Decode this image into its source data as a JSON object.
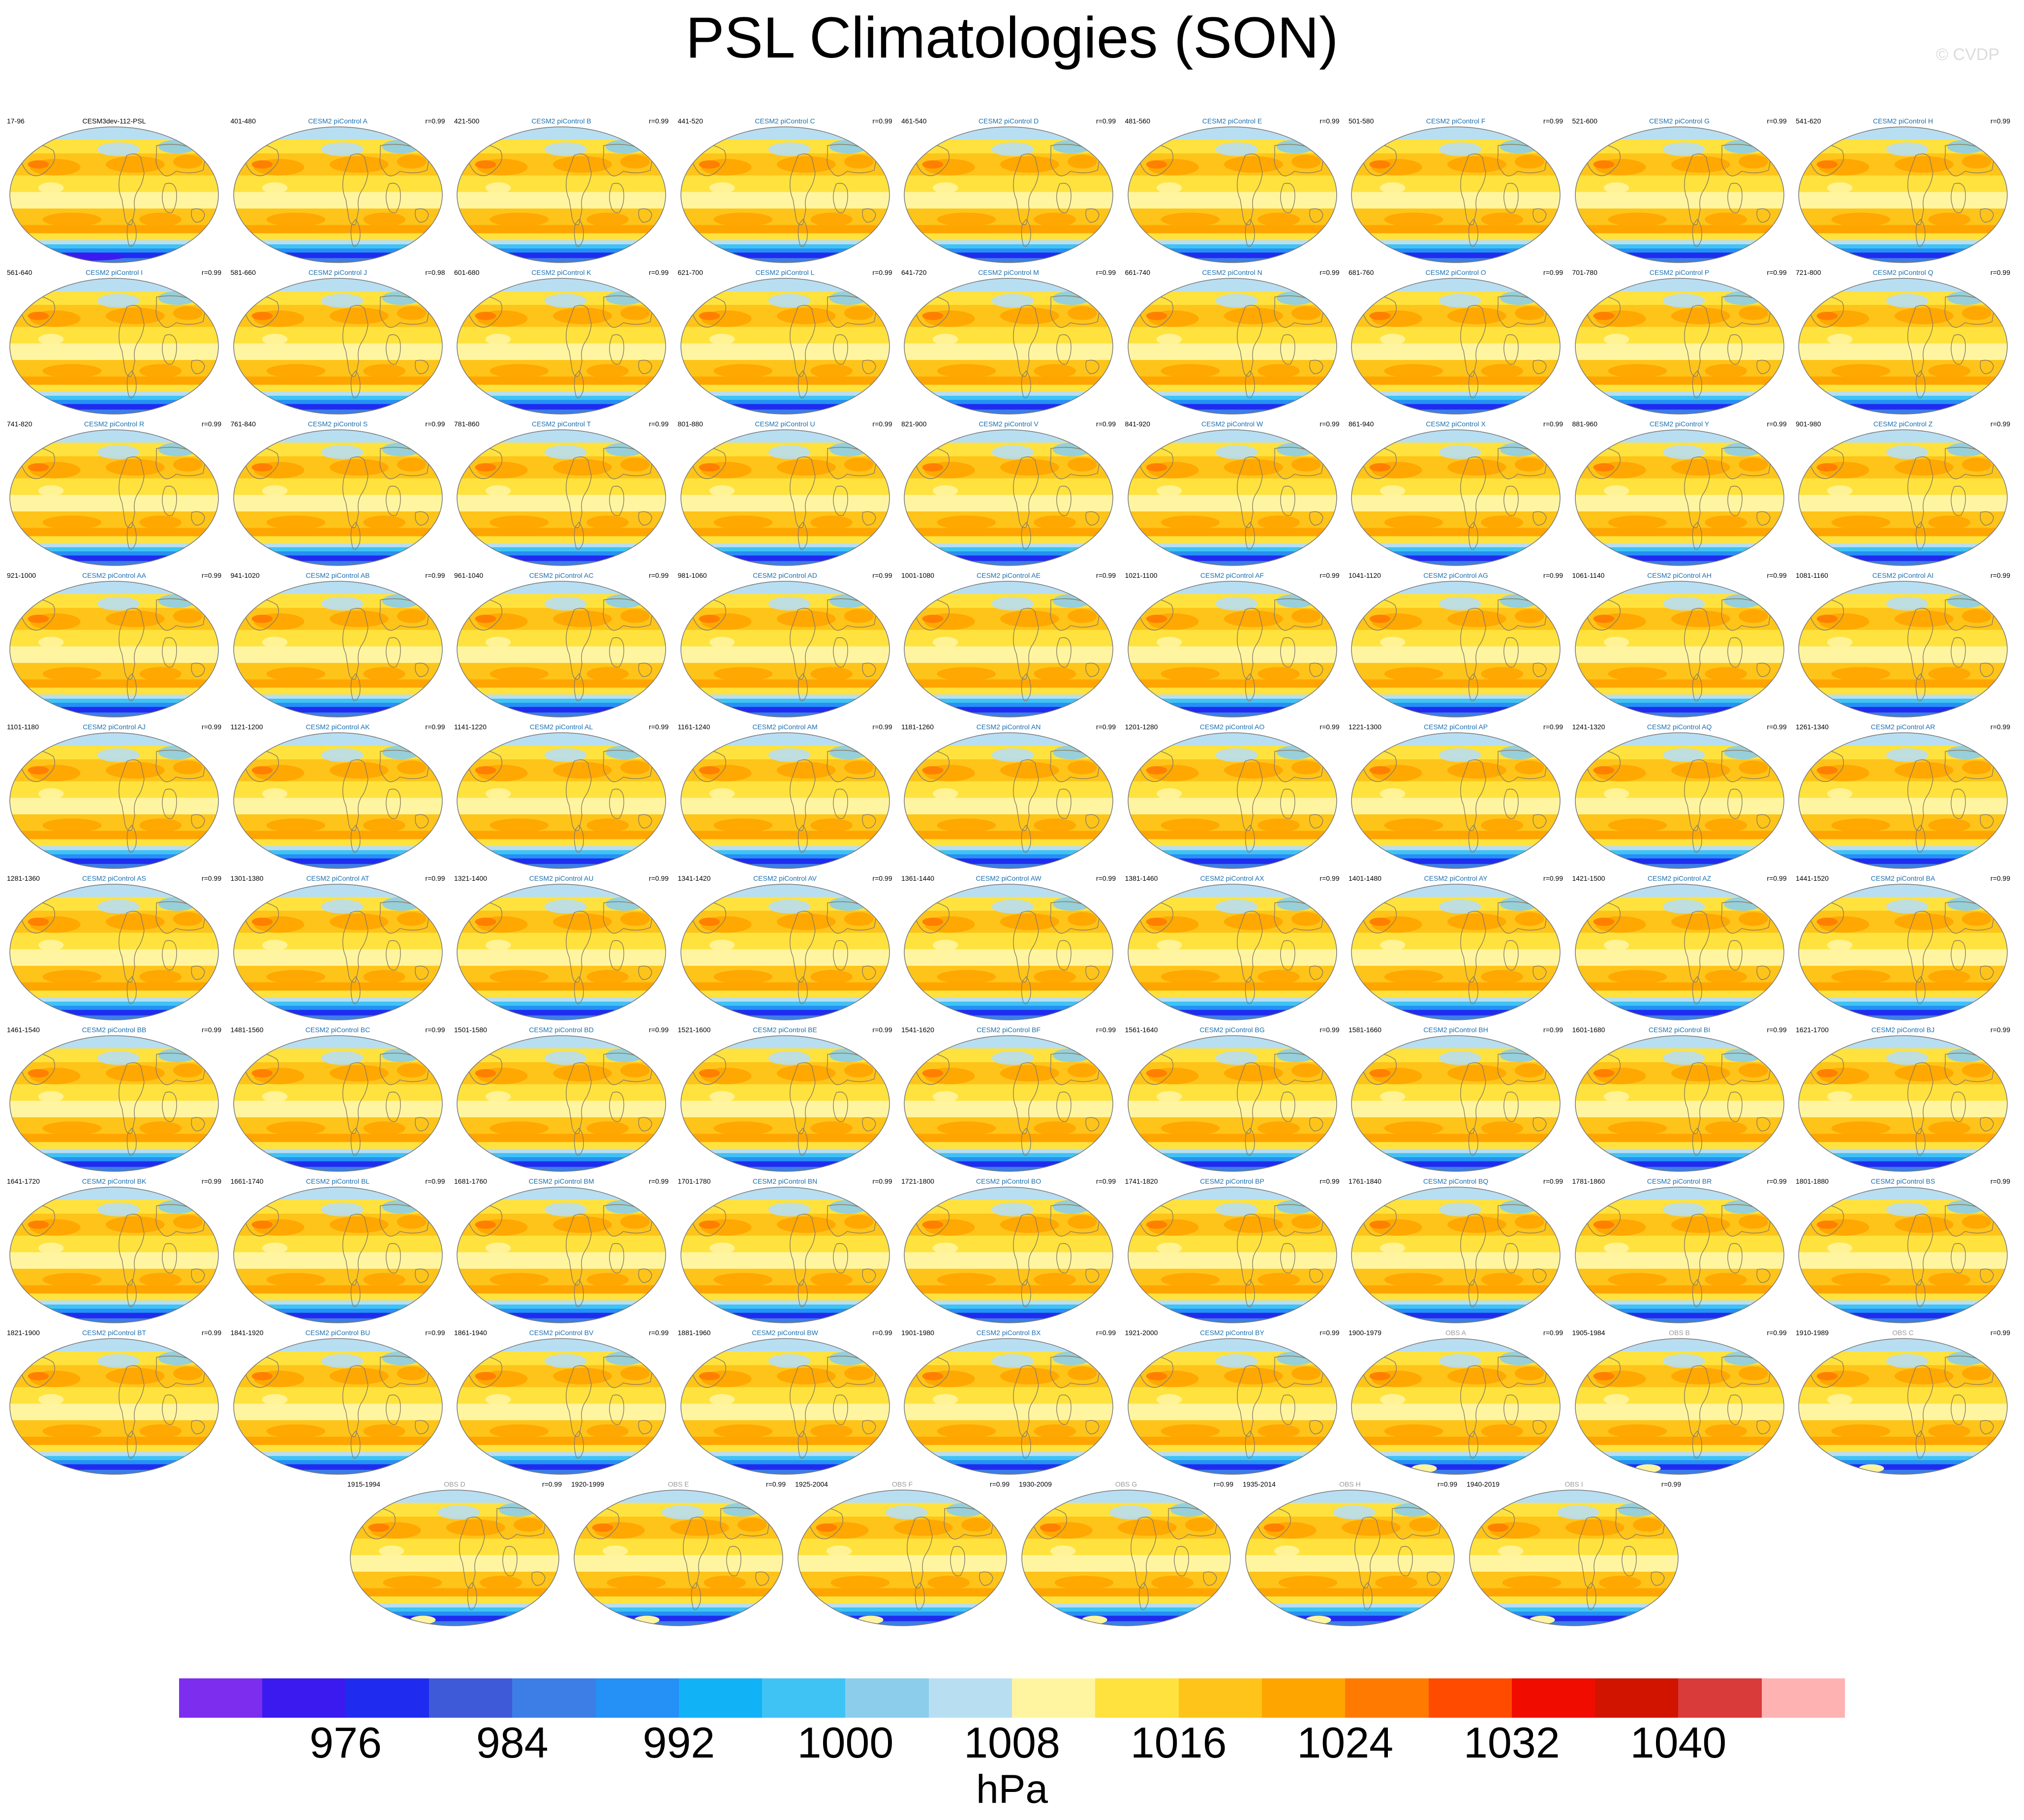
{
  "title": "PSL Climatologies (SON)",
  "copyright": "© CVDP",
  "units": "hPa",
  "colorbar": {
    "colors": [
      "#7d2ded",
      "#3b1af0",
      "#1f2cf0",
      "#3f5ad8",
      "#3d7ee6",
      "#2590f5",
      "#12b2f7",
      "#3fc3f5",
      "#8ccdeb",
      "#b8def2",
      "#fff5a0",
      "#ffe23d",
      "#ffc419",
      "#ffa500",
      "#ff7a00",
      "#ff4b00",
      "#f10c00",
      "#d11400",
      "#d93a3a",
      "#ffb2b2"
    ],
    "labels": [
      "976",
      "984",
      "992",
      "1000",
      "1008",
      "1016",
      "1024",
      "1032",
      "1040"
    ]
  },
  "panels": [
    {
      "title": "CESM3dev-112-PSL",
      "years": "17-96",
      "r": "",
      "kind": "ref"
    },
    {
      "title": "CESM2 piControl A",
      "years": "401-480",
      "r": "r=0.99",
      "kind": "model"
    },
    {
      "title": "CESM2 piControl B",
      "years": "421-500",
      "r": "r=0.99",
      "kind": "model"
    },
    {
      "title": "CESM2 piControl C",
      "years": "441-520",
      "r": "r=0.99",
      "kind": "model"
    },
    {
      "title": "CESM2 piControl D",
      "years": "461-540",
      "r": "r=0.99",
      "kind": "model"
    },
    {
      "title": "CESM2 piControl E",
      "years": "481-560",
      "r": "r=0.99",
      "kind": "model"
    },
    {
      "title": "CESM2 piControl F",
      "years": "501-580",
      "r": "r=0.99",
      "kind": "model"
    },
    {
      "title": "CESM2 piControl G",
      "years": "521-600",
      "r": "r=0.99",
      "kind": "model"
    },
    {
      "title": "CESM2 piControl H",
      "years": "541-620",
      "r": "r=0.99",
      "kind": "model"
    },
    {
      "title": "CESM2 piControl I",
      "years": "561-640",
      "r": "r=0.99",
      "kind": "model"
    },
    {
      "title": "CESM2 piControl J",
      "years": "581-660",
      "r": "r=0.98",
      "kind": "model"
    },
    {
      "title": "CESM2 piControl K",
      "years": "601-680",
      "r": "r=0.99",
      "kind": "model"
    },
    {
      "title": "CESM2 piControl L",
      "years": "621-700",
      "r": "r=0.99",
      "kind": "model"
    },
    {
      "title": "CESM2 piControl M",
      "years": "641-720",
      "r": "r=0.99",
      "kind": "model"
    },
    {
      "title": "CESM2 piControl N",
      "years": "661-740",
      "r": "r=0.99",
      "kind": "model"
    },
    {
      "title": "CESM2 piControl O",
      "years": "681-760",
      "r": "r=0.99",
      "kind": "model"
    },
    {
      "title": "CESM2 piControl P",
      "years": "701-780",
      "r": "r=0.99",
      "kind": "model"
    },
    {
      "title": "CESM2 piControl Q",
      "years": "721-800",
      "r": "r=0.99",
      "kind": "model"
    },
    {
      "title": "CESM2 piControl R",
      "years": "741-820",
      "r": "r=0.99",
      "kind": "model"
    },
    {
      "title": "CESM2 piControl S",
      "years": "761-840",
      "r": "r=0.99",
      "kind": "model"
    },
    {
      "title": "CESM2 piControl T",
      "years": "781-860",
      "r": "r=0.99",
      "kind": "model"
    },
    {
      "title": "CESM2 piControl U",
      "years": "801-880",
      "r": "r=0.99",
      "kind": "model"
    },
    {
      "title": "CESM2 piControl V",
      "years": "821-900",
      "r": "r=0.99",
      "kind": "model"
    },
    {
      "title": "CESM2 piControl W",
      "years": "841-920",
      "r": "r=0.99",
      "kind": "model"
    },
    {
      "title": "CESM2 piControl X",
      "years": "861-940",
      "r": "r=0.99",
      "kind": "model"
    },
    {
      "title": "CESM2 piControl Y",
      "years": "881-960",
      "r": "r=0.99",
      "kind": "model"
    },
    {
      "title": "CESM2 piControl Z",
      "years": "901-980",
      "r": "r=0.99",
      "kind": "model"
    },
    {
      "title": "CESM2 piControl AA",
      "years": "921-1000",
      "r": "r=0.99",
      "kind": "model"
    },
    {
      "title": "CESM2 piControl AB",
      "years": "941-1020",
      "r": "r=0.99",
      "kind": "model"
    },
    {
      "title": "CESM2 piControl AC",
      "years": "961-1040",
      "r": "r=0.99",
      "kind": "model"
    },
    {
      "title": "CESM2 piControl AD",
      "years": "981-1060",
      "r": "r=0.99",
      "kind": "model"
    },
    {
      "title": "CESM2 piControl AE",
      "years": "1001-1080",
      "r": "r=0.99",
      "kind": "model"
    },
    {
      "title": "CESM2 piControl AF",
      "years": "1021-1100",
      "r": "r=0.99",
      "kind": "model"
    },
    {
      "title": "CESM2 piControl AG",
      "years": "1041-1120",
      "r": "r=0.99",
      "kind": "model"
    },
    {
      "title": "CESM2 piControl AH",
      "years": "1061-1140",
      "r": "r=0.99",
      "kind": "model"
    },
    {
      "title": "CESM2 piControl AI",
      "years": "1081-1160",
      "r": "r=0.99",
      "kind": "model"
    },
    {
      "title": "CESM2 piControl AJ",
      "years": "1101-1180",
      "r": "r=0.99",
      "kind": "model"
    },
    {
      "title": "CESM2 piControl AK",
      "years": "1121-1200",
      "r": "r=0.99",
      "kind": "model"
    },
    {
      "title": "CESM2 piControl AL",
      "years": "1141-1220",
      "r": "r=0.99",
      "kind": "model"
    },
    {
      "title": "CESM2 piControl AM",
      "years": "1161-1240",
      "r": "r=0.99",
      "kind": "model"
    },
    {
      "title": "CESM2 piControl AN",
      "years": "1181-1260",
      "r": "r=0.99",
      "kind": "model"
    },
    {
      "title": "CESM2 piControl AO",
      "years": "1201-1280",
      "r": "r=0.99",
      "kind": "model"
    },
    {
      "title": "CESM2 piControl AP",
      "years": "1221-1300",
      "r": "r=0.99",
      "kind": "model"
    },
    {
      "title": "CESM2 piControl AQ",
      "years": "1241-1320",
      "r": "r=0.99",
      "kind": "model"
    },
    {
      "title": "CESM2 piControl AR",
      "years": "1261-1340",
      "r": "r=0.99",
      "kind": "model"
    },
    {
      "title": "CESM2 piControl AS",
      "years": "1281-1360",
      "r": "r=0.99",
      "kind": "model"
    },
    {
      "title": "CESM2 piControl AT",
      "years": "1301-1380",
      "r": "r=0.99",
      "kind": "model"
    },
    {
      "title": "CESM2 piControl AU",
      "years": "1321-1400",
      "r": "r=0.99",
      "kind": "model"
    },
    {
      "title": "CESM2 piControl AV",
      "years": "1341-1420",
      "r": "r=0.99",
      "kind": "model"
    },
    {
      "title": "CESM2 piControl AW",
      "years": "1361-1440",
      "r": "r=0.99",
      "kind": "model"
    },
    {
      "title": "CESM2 piControl AX",
      "years": "1381-1460",
      "r": "r=0.99",
      "kind": "model"
    },
    {
      "title": "CESM2 piControl AY",
      "years": "1401-1480",
      "r": "r=0.99",
      "kind": "model"
    },
    {
      "title": "CESM2 piControl AZ",
      "years": "1421-1500",
      "r": "r=0.99",
      "kind": "model"
    },
    {
      "title": "CESM2 piControl BA",
      "years": "1441-1520",
      "r": "r=0.99",
      "kind": "model"
    },
    {
      "title": "CESM2 piControl BB",
      "years": "1461-1540",
      "r": "r=0.99",
      "kind": "model"
    },
    {
      "title": "CESM2 piControl BC",
      "years": "1481-1560",
      "r": "r=0.99",
      "kind": "model"
    },
    {
      "title": "CESM2 piControl BD",
      "years": "1501-1580",
      "r": "r=0.99",
      "kind": "model"
    },
    {
      "title": "CESM2 piControl BE",
      "years": "1521-1600",
      "r": "r=0.99",
      "kind": "model"
    },
    {
      "title": "CESM2 piControl BF",
      "years": "1541-1620",
      "r": "r=0.99",
      "kind": "model"
    },
    {
      "title": "CESM2 piControl BG",
      "years": "1561-1640",
      "r": "r=0.99",
      "kind": "model"
    },
    {
      "title": "CESM2 piControl BH",
      "years": "1581-1660",
      "r": "r=0.99",
      "kind": "model"
    },
    {
      "title": "CESM2 piControl BI",
      "years": "1601-1680",
      "r": "r=0.99",
      "kind": "model"
    },
    {
      "title": "CESM2 piControl BJ",
      "years": "1621-1700",
      "r": "r=0.99",
      "kind": "model"
    },
    {
      "title": "CESM2 piControl BK",
      "years": "1641-1720",
      "r": "r=0.99",
      "kind": "model"
    },
    {
      "title": "CESM2 piControl BL",
      "years": "1661-1740",
      "r": "r=0.99",
      "kind": "model"
    },
    {
      "title": "CESM2 piControl BM",
      "years": "1681-1760",
      "r": "r=0.99",
      "kind": "model"
    },
    {
      "title": "CESM2 piControl BN",
      "years": "1701-1780",
      "r": "r=0.99",
      "kind": "model"
    },
    {
      "title": "CESM2 piControl BO",
      "years": "1721-1800",
      "r": "r=0.99",
      "kind": "model"
    },
    {
      "title": "CESM2 piControl BP",
      "years": "1741-1820",
      "r": "r=0.99",
      "kind": "model"
    },
    {
      "title": "CESM2 piControl BQ",
      "years": "1761-1840",
      "r": "r=0.99",
      "kind": "model"
    },
    {
      "title": "CESM2 piControl BR",
      "years": "1781-1860",
      "r": "r=0.99",
      "kind": "model"
    },
    {
      "title": "CESM2 piControl BS",
      "years": "1801-1880",
      "r": "r=0.99",
      "kind": "model"
    },
    {
      "title": "CESM2 piControl BT",
      "years": "1821-1900",
      "r": "r=0.99",
      "kind": "model"
    },
    {
      "title": "CESM2 piControl BU",
      "years": "1841-1920",
      "r": "r=0.99",
      "kind": "model"
    },
    {
      "title": "CESM2 piControl BV",
      "years": "1861-1940",
      "r": "r=0.99",
      "kind": "model"
    },
    {
      "title": "CESM2 piControl BW",
      "years": "1881-1960",
      "r": "r=0.99",
      "kind": "model"
    },
    {
      "title": "CESM2 piControl BX",
      "years": "1901-1980",
      "r": "r=0.99",
      "kind": "model"
    },
    {
      "title": "CESM2 piControl BY",
      "years": "1921-2000",
      "r": "r=0.99",
      "kind": "model"
    },
    {
      "title": "OBS A",
      "years": "1900-1979",
      "r": "r=0.99",
      "kind": "obs"
    },
    {
      "title": "OBS B",
      "years": "1905-1984",
      "r": "r=0.99",
      "kind": "obs"
    },
    {
      "title": "OBS C",
      "years": "1910-1989",
      "r": "r=0.99",
      "kind": "obs"
    },
    {
      "title": "OBS D",
      "years": "1915-1994",
      "r": "r=0.99",
      "kind": "obs"
    },
    {
      "title": "OBS E",
      "years": "1920-1999",
      "r": "r=0.99",
      "kind": "obs"
    },
    {
      "title": "OBS F",
      "years": "1925-2004",
      "r": "r=0.99",
      "kind": "obs"
    },
    {
      "title": "OBS G",
      "years": "1930-2009",
      "r": "r=0.99",
      "kind": "obs"
    },
    {
      "title": "OBS H",
      "years": "1935-2014",
      "r": "r=0.99",
      "kind": "obs"
    },
    {
      "title": "OBS I",
      "years": "1940-2019",
      "r": "r=0.99",
      "kind": "obs"
    }
  ]
}
